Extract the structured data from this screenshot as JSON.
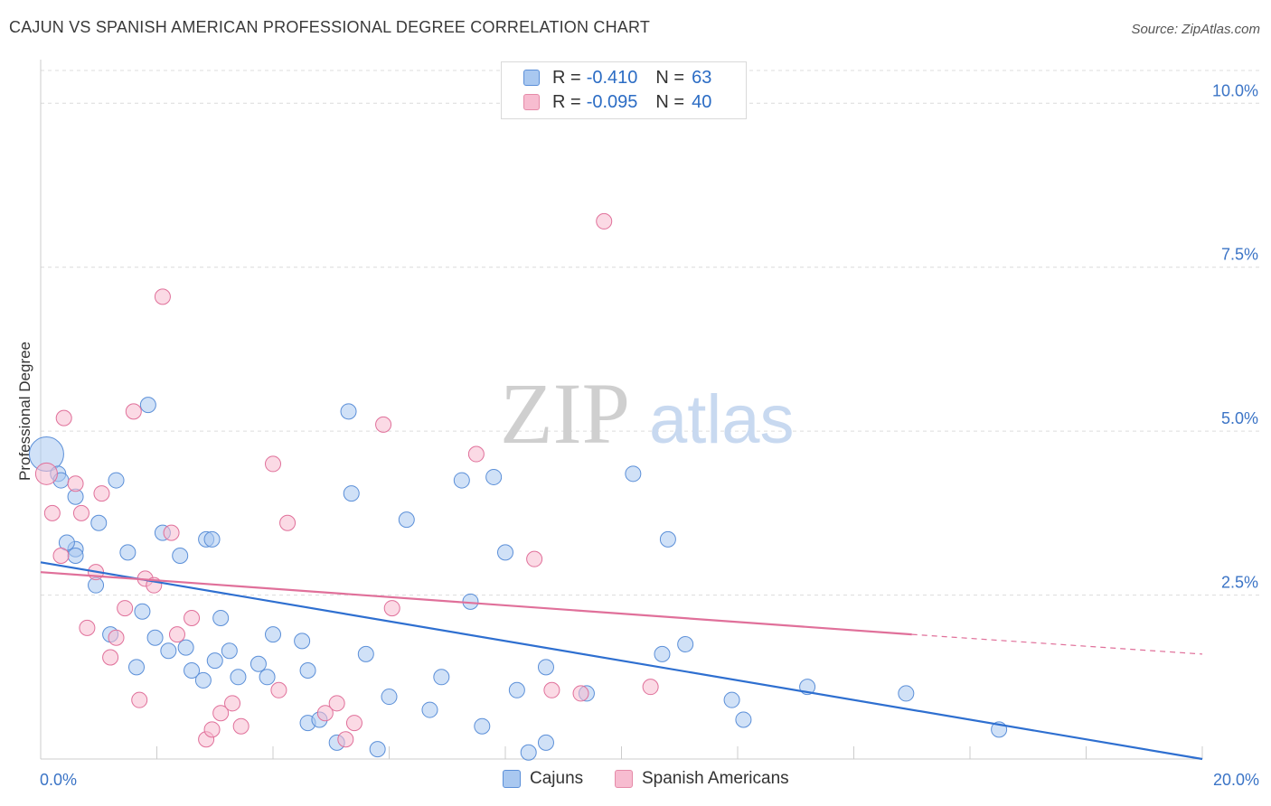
{
  "header": {
    "title": "CAJUN VS SPANISH AMERICAN PROFESSIONAL DEGREE CORRELATION CHART",
    "source": "Source: ZipAtlas.com"
  },
  "watermark": {
    "zip": "ZIP",
    "atlas": "atlas"
  },
  "legend": {
    "rows": [
      {
        "r_label": "R = ",
        "r_value": "-0.410",
        "n_label": "N = ",
        "n_value": "63",
        "color": "#a9c8f0",
        "border": "#5b8fd8"
      },
      {
        "r_label": "R = ",
        "r_value": "-0.095",
        "n_label": "N = ",
        "n_value": "40",
        "color": "#f7bcd0",
        "border": "#e58aa8"
      }
    ]
  },
  "bottom_legend": {
    "cajuns": "Cajuns",
    "spanish": "Spanish Americans"
  },
  "chart_data": {
    "type": "scatter",
    "title": "CAJUN VS SPANISH AMERICAN PROFESSIONAL DEGREE CORRELATION CHART",
    "xlabel": "",
    "ylabel": "Professional Degree",
    "xlim": [
      0,
      20
    ],
    "ylim": [
      0,
      10.5
    ],
    "x_tick_labels": [
      "0.0%",
      "20.0%"
    ],
    "y_ticks": [
      2.5,
      5.0,
      7.5,
      10.0
    ],
    "y_tick_labels": [
      "2.5%",
      "5.0%",
      "7.5%",
      "10.0%"
    ],
    "grid": true,
    "legend_position": "top-center",
    "colors": {
      "cajuns": "#5b8fd8",
      "cajuns_fill": "#a9c8f0",
      "spanish": "#e0709a",
      "spanish_fill": "#f7bcd0"
    },
    "series": [
      {
        "name": "Cajuns",
        "trend": {
          "x": [
            0,
            20
          ],
          "y": [
            3.0,
            0.0
          ]
        },
        "points": [
          [
            0.1,
            4.65
          ],
          [
            0.3,
            4.35
          ],
          [
            0.35,
            4.25
          ],
          [
            0.6,
            3.2
          ],
          [
            0.6,
            4.0
          ],
          [
            0.45,
            3.3
          ],
          [
            0.6,
            3.1
          ],
          [
            1.0,
            3.6
          ],
          [
            1.3,
            4.25
          ],
          [
            0.95,
            2.65
          ],
          [
            1.5,
            3.15
          ],
          [
            1.85,
            5.4
          ],
          [
            2.1,
            3.45
          ],
          [
            2.4,
            3.1
          ],
          [
            2.85,
            3.35
          ],
          [
            2.95,
            3.35
          ],
          [
            1.2,
            1.9
          ],
          [
            1.65,
            1.4
          ],
          [
            1.75,
            2.25
          ],
          [
            1.97,
            1.85
          ],
          [
            2.2,
            1.65
          ],
          [
            2.5,
            1.7
          ],
          [
            2.6,
            1.35
          ],
          [
            2.8,
            1.2
          ],
          [
            3.0,
            1.5
          ],
          [
            3.1,
            2.15
          ],
          [
            3.25,
            1.65
          ],
          [
            3.4,
            1.25
          ],
          [
            3.75,
            1.45
          ],
          [
            3.9,
            1.25
          ],
          [
            4.0,
            1.9
          ],
          [
            4.5,
            1.8
          ],
          [
            4.6,
            1.35
          ],
          [
            4.6,
            0.55
          ],
          [
            4.8,
            0.6
          ],
          [
            5.1,
            0.25
          ],
          [
            5.3,
            5.3
          ],
          [
            5.35,
            4.05
          ],
          [
            5.6,
            1.6
          ],
          [
            5.8,
            0.15
          ],
          [
            6.0,
            0.95
          ],
          [
            6.3,
            3.65
          ],
          [
            6.7,
            0.75
          ],
          [
            6.9,
            1.25
          ],
          [
            7.25,
            4.25
          ],
          [
            7.4,
            2.4
          ],
          [
            7.6,
            0.5
          ],
          [
            7.8,
            4.3
          ],
          [
            8.0,
            3.15
          ],
          [
            8.2,
            1.05
          ],
          [
            8.4,
            0.1
          ],
          [
            8.7,
            0.25
          ],
          [
            8.7,
            1.4
          ],
          [
            9.4,
            1.0
          ],
          [
            10.2,
            4.35
          ],
          [
            10.7,
            1.6
          ],
          [
            10.8,
            3.35
          ],
          [
            11.1,
            1.75
          ],
          [
            11.9,
            0.9
          ],
          [
            12.1,
            0.6
          ],
          [
            13.2,
            1.1
          ],
          [
            14.9,
            1.0
          ],
          [
            16.5,
            0.45
          ]
        ]
      },
      {
        "name": "Spanish Americans",
        "trend": {
          "x": [
            0,
            15
          ],
          "y": [
            2.85,
            1.9
          ]
        },
        "trend_dashed": {
          "x": [
            15,
            20
          ],
          "y": [
            1.9,
            1.6
          ]
        },
        "points": [
          [
            0.1,
            4.35
          ],
          [
            0.2,
            3.75
          ],
          [
            0.4,
            5.2
          ],
          [
            0.35,
            3.1
          ],
          [
            0.6,
            4.2
          ],
          [
            0.7,
            3.75
          ],
          [
            0.8,
            2.0
          ],
          [
            0.95,
            2.85
          ],
          [
            1.05,
            4.05
          ],
          [
            1.2,
            1.55
          ],
          [
            1.3,
            1.85
          ],
          [
            1.45,
            2.3
          ],
          [
            1.6,
            5.3
          ],
          [
            1.7,
            0.9
          ],
          [
            1.8,
            2.75
          ],
          [
            1.95,
            2.65
          ],
          [
            2.1,
            7.05
          ],
          [
            2.25,
            3.45
          ],
          [
            2.35,
            1.9
          ],
          [
            2.6,
            2.15
          ],
          [
            2.85,
            0.3
          ],
          [
            2.95,
            0.45
          ],
          [
            3.1,
            0.7
          ],
          [
            3.3,
            0.85
          ],
          [
            3.45,
            0.5
          ],
          [
            4.0,
            4.5
          ],
          [
            4.1,
            1.05
          ],
          [
            4.25,
            3.6
          ],
          [
            4.9,
            0.7
          ],
          [
            5.1,
            0.85
          ],
          [
            5.25,
            0.3
          ],
          [
            5.4,
            0.55
          ],
          [
            5.9,
            5.1
          ],
          [
            6.05,
            2.3
          ],
          [
            7.5,
            4.65
          ],
          [
            8.5,
            3.05
          ],
          [
            8.8,
            1.05
          ],
          [
            9.3,
            1.0
          ],
          [
            9.7,
            8.2
          ],
          [
            10.5,
            1.1
          ]
        ]
      }
    ]
  }
}
